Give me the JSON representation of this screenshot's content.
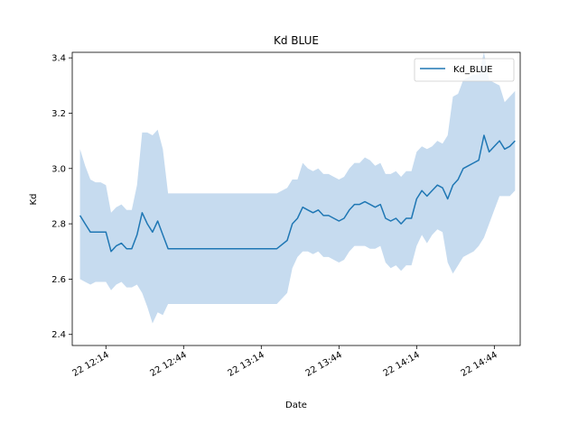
{
  "chart_data": {
    "type": "line",
    "title": "Kd BLUE",
    "xlabel": "Date",
    "ylabel": "Kd",
    "x_ticks": [
      "22 12:14",
      "22 12:44",
      "22 13:14",
      "22 13:44",
      "22 14:14",
      "22 14:44"
    ],
    "y_ticks": [
      "2.4",
      "2.6",
      "2.8",
      "3.0",
      "3.2",
      "3.4"
    ],
    "xlim": [
      "12:01",
      "14:54"
    ],
    "ylim": [
      2.36,
      3.42
    ],
    "legend": {
      "position": "top-right",
      "entries": [
        "Kd_BLUE"
      ]
    },
    "grid": false,
    "colors": {
      "line": "#1f77b4",
      "band": "#c6dbef"
    },
    "series": [
      {
        "name": "Kd_BLUE",
        "x": [
          "12:04",
          "12:06",
          "12:08",
          "12:10",
          "12:12",
          "12:14",
          "12:16",
          "12:18",
          "12:20",
          "12:22",
          "12:24",
          "12:26",
          "12:28",
          "12:30",
          "12:32",
          "12:34",
          "12:36",
          "12:38",
          "12:40",
          "12:42",
          "12:44",
          "12:50",
          "13:00",
          "13:10",
          "13:20",
          "13:24",
          "13:26",
          "13:28",
          "13:30",
          "13:32",
          "13:34",
          "13:36",
          "13:38",
          "13:40",
          "13:42",
          "13:44",
          "13:46",
          "13:48",
          "13:50",
          "13:52",
          "13:54",
          "13:56",
          "13:58",
          "14:00",
          "14:02",
          "14:04",
          "14:06",
          "14:08",
          "14:10",
          "14:12",
          "14:14",
          "14:16",
          "14:18",
          "14:20",
          "14:22",
          "14:24",
          "14:26",
          "14:28",
          "14:30",
          "14:32",
          "14:34",
          "14:36",
          "14:38",
          "14:40",
          "14:42",
          "14:44",
          "14:46",
          "14:48",
          "14:50",
          "14:52"
        ],
        "values": [
          2.83,
          2.8,
          2.77,
          2.77,
          2.77,
          2.77,
          2.7,
          2.72,
          2.73,
          2.71,
          2.71,
          2.76,
          2.84,
          2.8,
          2.77,
          2.81,
          2.76,
          2.71,
          2.71,
          2.71,
          2.71,
          2.71,
          2.71,
          2.71,
          2.71,
          2.74,
          2.8,
          2.82,
          2.86,
          2.85,
          2.84,
          2.85,
          2.83,
          2.83,
          2.82,
          2.81,
          2.82,
          2.85,
          2.87,
          2.87,
          2.88,
          2.87,
          2.86,
          2.87,
          2.82,
          2.81,
          2.82,
          2.8,
          2.82,
          2.82,
          2.89,
          2.92,
          2.9,
          2.92,
          2.94,
          2.93,
          2.89,
          2.94,
          2.96,
          3.0,
          3.01,
          3.02,
          3.03,
          3.12,
          3.06,
          3.08,
          3.1,
          3.07,
          3.08,
          3.1
        ],
        "lower": [
          2.6,
          2.59,
          2.58,
          2.59,
          2.59,
          2.59,
          2.56,
          2.58,
          2.59,
          2.57,
          2.57,
          2.58,
          2.55,
          2.5,
          2.44,
          2.48,
          2.47,
          2.51,
          2.51,
          2.51,
          2.51,
          2.51,
          2.51,
          2.51,
          2.51,
          2.55,
          2.64,
          2.68,
          2.7,
          2.7,
          2.69,
          2.7,
          2.68,
          2.68,
          2.67,
          2.66,
          2.67,
          2.7,
          2.72,
          2.72,
          2.72,
          2.71,
          2.71,
          2.72,
          2.66,
          2.64,
          2.65,
          2.63,
          2.65,
          2.65,
          2.72,
          2.76,
          2.73,
          2.76,
          2.78,
          2.77,
          2.66,
          2.62,
          2.65,
          2.68,
          2.69,
          2.7,
          2.72,
          2.75,
          2.8,
          2.85,
          2.9,
          2.9,
          2.9,
          2.92
        ],
        "upper": [
          3.07,
          3.01,
          2.96,
          2.95,
          2.95,
          2.94,
          2.84,
          2.86,
          2.87,
          2.85,
          2.85,
          2.94,
          3.13,
          3.13,
          3.12,
          3.14,
          3.07,
          2.91,
          2.91,
          2.91,
          2.91,
          2.91,
          2.91,
          2.91,
          2.91,
          2.93,
          2.96,
          2.96,
          3.02,
          3.0,
          2.99,
          3.0,
          2.98,
          2.98,
          2.97,
          2.96,
          2.97,
          3.0,
          3.02,
          3.02,
          3.04,
          3.03,
          3.01,
          3.02,
          2.98,
          2.98,
          2.99,
          2.97,
          2.99,
          2.99,
          3.06,
          3.08,
          3.07,
          3.08,
          3.1,
          3.09,
          3.12,
          3.26,
          3.27,
          3.32,
          3.33,
          3.34,
          3.34,
          3.49,
          3.32,
          3.31,
          3.3,
          3.24,
          3.26,
          3.28
        ]
      }
    ]
  }
}
